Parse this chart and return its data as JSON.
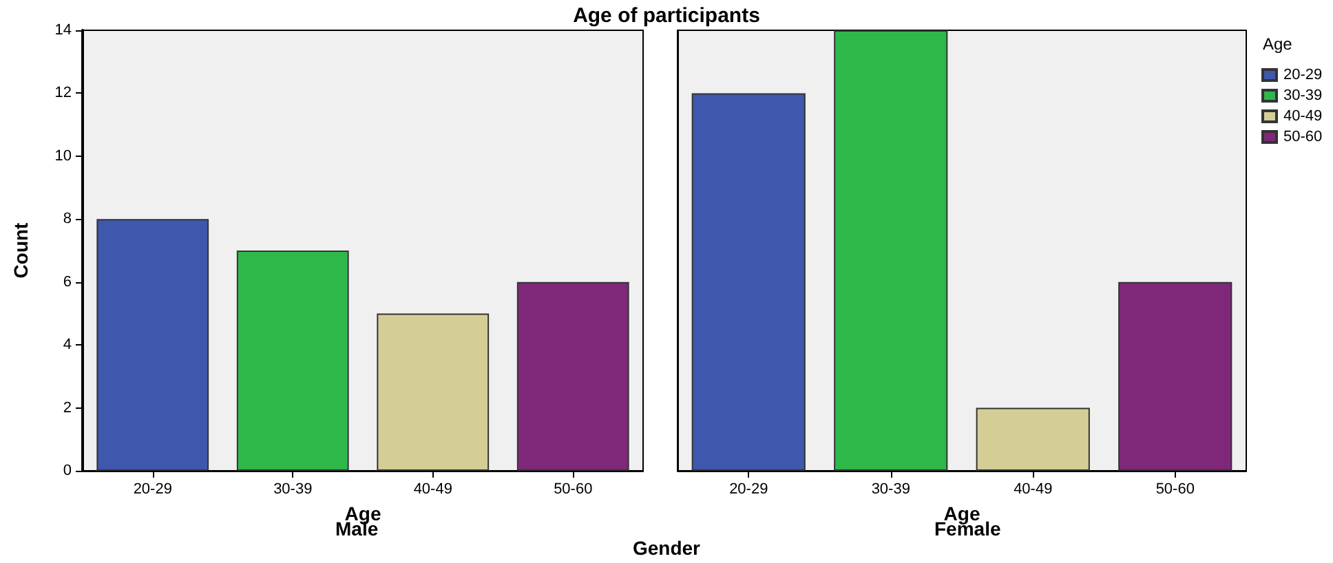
{
  "chart_data": [
    {
      "type": "bar",
      "title": "Age of participants",
      "subtitle": "Male",
      "xlabel": "Age",
      "ylabel": "Count",
      "annotations": [
        "Gender"
      ],
      "categories": [
        "20-29",
        "30-39",
        "40-49",
        "50-60"
      ],
      "series": [
        {
          "color": "#3f58ad",
          "values": [
            8,
            null,
            null,
            null
          ]
        },
        {
          "color": "#2fb84a",
          "values": [
            null,
            7,
            null,
            null
          ]
        },
        {
          "color": "#d4ce96",
          "values": [
            null,
            null,
            5,
            null
          ]
        },
        {
          "color": "#7f287a",
          "values": [
            null,
            null,
            null,
            6
          ]
        }
      ],
      "ylim": [
        0,
        14
      ],
      "yticks": [
        0,
        2,
        4,
        6,
        8,
        10,
        12,
        14
      ],
      "grid": false
    },
    {
      "type": "bar",
      "subtitle": "Female",
      "xlabel": "Age",
      "legend_title": "Age",
      "legend": "right",
      "tick_labels": "x",
      "categories": [
        "20-29",
        "30-39",
        "40-49",
        "50-60"
      ],
      "series": [
        {
          "name": "20-29",
          "color": "#3f58ad",
          "values": [
            12,
            null,
            null,
            null
          ]
        },
        {
          "name": "30-39",
          "color": "#2fb84a",
          "values": [
            null,
            14,
            null,
            null
          ]
        },
        {
          "name": "40-49",
          "color": "#d4ce96",
          "values": [
            null,
            null,
            2,
            null
          ]
        },
        {
          "name": "50-60",
          "color": "#7f287a",
          "values": [
            null,
            null,
            null,
            6
          ]
        }
      ],
      "ylim": [
        0,
        14
      ],
      "yticks": [
        0,
        2,
        4,
        6,
        8,
        10,
        12,
        14
      ],
      "grid": false
    }
  ]
}
